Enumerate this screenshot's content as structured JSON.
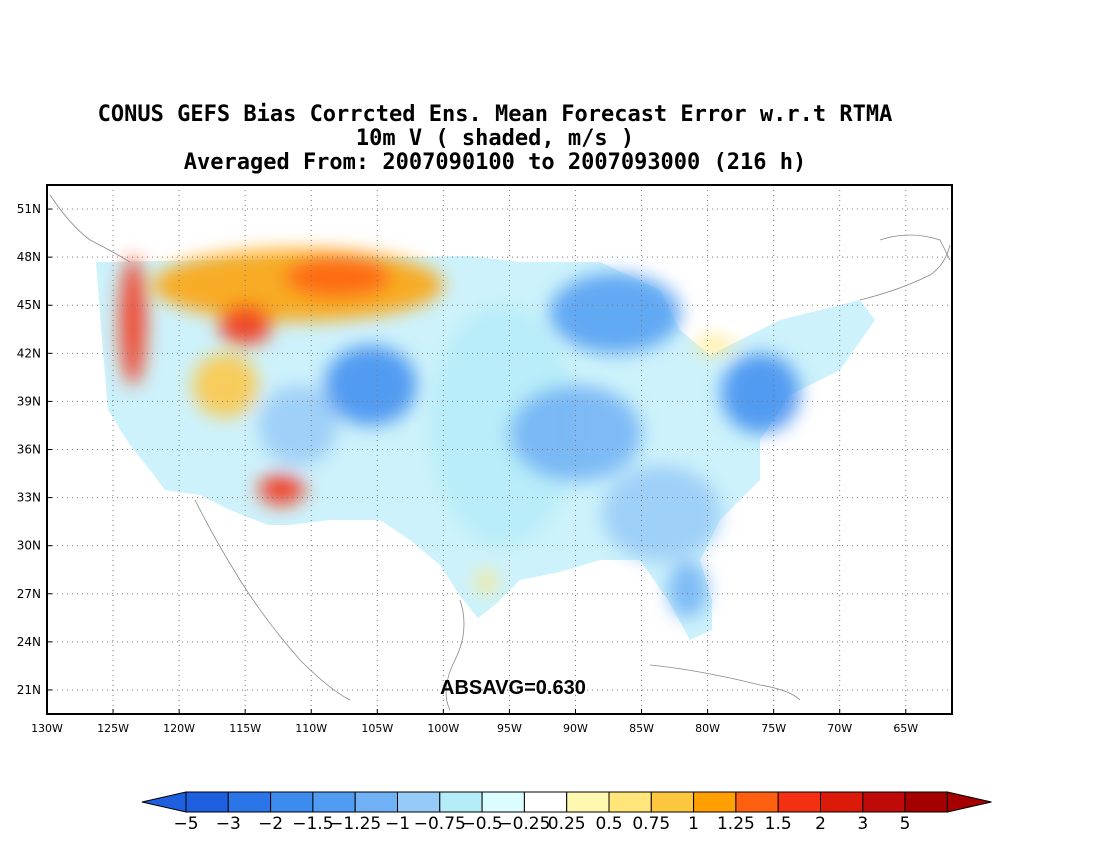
{
  "title": {
    "line1": "CONUS GEFS Bias Corrcted Ens. Mean Forecast Error w.r.t RTMA",
    "line2": "10m V ( shaded, m/s )",
    "line3": "Averaged From: 2007090100 to 2007093000 (216 h)"
  },
  "axes": {
    "lat_labels": [
      "51N",
      "48N",
      "45N",
      "42N",
      "39N",
      "36N",
      "33N",
      "30N",
      "27N",
      "24N",
      "21N"
    ],
    "lat_values": [
      51,
      48,
      45,
      42,
      39,
      36,
      33,
      30,
      27,
      24,
      21
    ],
    "lon_labels": [
      "130W",
      "125W",
      "120W",
      "115W",
      "110W",
      "105W",
      "100W",
      "95W",
      "90W",
      "85W",
      "80W",
      "75W",
      "70W",
      "65W"
    ],
    "lon_values": [
      -130,
      -125,
      -120,
      -115,
      -110,
      -105,
      -100,
      -95,
      -90,
      -85,
      -80,
      -75,
      -70,
      -65
    ],
    "lon_range": [
      -130,
      -61.5
    ],
    "lat_range": [
      19.5,
      52.5
    ],
    "grid": "dotted"
  },
  "annotation": {
    "absavg": "ABSAVG=0.630"
  },
  "colorbar": {
    "levels": [
      "−5",
      "−3",
      "−2",
      "−1.5",
      "−1.25",
      "−1",
      "−0.75",
      "−0.5",
      "−0.25",
      "0.25",
      "0.5",
      "0.75",
      "1",
      "1.25",
      "1.5",
      "2",
      "3",
      "5"
    ],
    "colors": [
      "#1e5fe0",
      "#2a76e8",
      "#3c8cf0",
      "#4f9cf2",
      "#70b0f5",
      "#96caf7",
      "#b4ecf8",
      "#dcfdff",
      "#ffffff",
      "#fff8b0",
      "#ffe57a",
      "#ffc640",
      "#ffa000",
      "#ff6010",
      "#f43012",
      "#dc1a0a",
      "#c00a0a",
      "#a50000"
    ],
    "left_tip_color": "#1e5fe0",
    "right_tip_color": "#a50000"
  },
  "regions": [
    {
      "name": "pacific-nw-coast",
      "color": "#f43012",
      "lon": [
        -124.5,
        -122.5
      ],
      "lat": [
        40,
        48
      ]
    },
    {
      "name": "northern-rockies",
      "color": "#ffa000",
      "lon": [
        -122,
        -100
      ],
      "lat": [
        44,
        48.5
      ]
    },
    {
      "name": "idaho-core",
      "color": "#f43012",
      "lon": [
        -117,
        -113
      ],
      "lat": [
        42.5,
        45
      ]
    },
    {
      "name": "montana-core",
      "color": "#ff6010",
      "lon": [
        -112,
        -104
      ],
      "lat": [
        45.5,
        48
      ]
    },
    {
      "name": "nevada-warm",
      "color": "#ffc640",
      "lon": [
        -119,
        -114
      ],
      "lat": [
        38,
        42
      ]
    },
    {
      "name": "arizona-red",
      "color": "#f43012",
      "lon": [
        -114,
        -110.5
      ],
      "lat": [
        32.5,
        34.5
      ]
    },
    {
      "name": "great-basin-blue",
      "color": "#96caf7",
      "lon": [
        -114,
        -108
      ],
      "lat": [
        35,
        40
      ]
    },
    {
      "name": "colorado-blue",
      "color": "#3c8cf0",
      "lon": [
        -109,
        -102
      ],
      "lat": [
        37.5,
        42.5
      ]
    },
    {
      "name": "plains-light",
      "color": "#b4ecf8",
      "lon": [
        -101,
        -90
      ],
      "lat": [
        30,
        45
      ]
    },
    {
      "name": "midwest-blue",
      "color": "#70b0f5",
      "lon": [
        -95,
        -85
      ],
      "lat": [
        34,
        40
      ]
    },
    {
      "name": "great-lakes-blue",
      "color": "#4f9cf2",
      "lon": [
        -92,
        -82
      ],
      "lat": [
        42,
        47
      ]
    },
    {
      "name": "east-coast-blue",
      "color": "#3c8cf0",
      "lon": [
        -79,
        -73
      ],
      "lat": [
        37,
        42
      ]
    },
    {
      "name": "southeast-light",
      "color": "#96caf7",
      "lon": [
        -88,
        -79
      ],
      "lat": [
        29,
        35
      ]
    },
    {
      "name": "florida-blue",
      "color": "#70b0f5",
      "lon": [
        -83,
        -80
      ],
      "lat": [
        25.5,
        29
      ]
    },
    {
      "name": "texas-coast-yellow",
      "color": "#ffe57a",
      "lon": [
        -97.5,
        -96
      ],
      "lat": [
        27,
        28.5
      ]
    },
    {
      "name": "lake-erie-yellow",
      "color": "#ffe57a",
      "lon": [
        -81,
        -78
      ],
      "lat": [
        42,
        43
      ]
    }
  ]
}
